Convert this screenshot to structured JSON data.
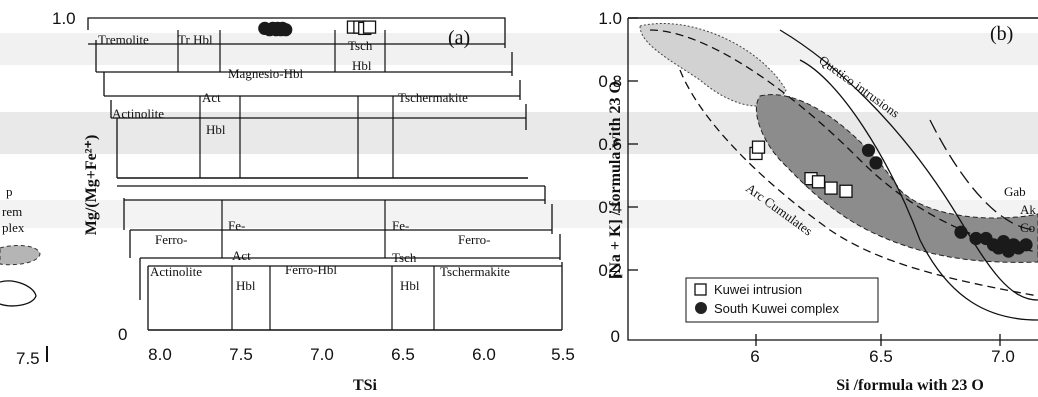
{
  "chart_data": [
    {
      "panel": "(a)",
      "type": "scatter",
      "xlabel": "TSi",
      "ylabel": "Mg/(Mg+Fe²⁺)",
      "xlim": [
        8.0,
        5.5
      ],
      "ylim": [
        0,
        1.0
      ],
      "x_ticks": [
        "8.0",
        "7.5",
        "7.0",
        "6.5",
        "6.0",
        "5.5"
      ],
      "y_ticks": [
        "1.0",
        "0"
      ],
      "left_edge_text": {
        "tick": "7.5",
        "fragments": [
          "p",
          "rem",
          "plex"
        ]
      },
      "field_labels": {
        "tremolite": "Tremolite",
        "tr_hbl": "Tr Hbl",
        "magnesio_hbl": "Magnesio-Hbl",
        "tsch_hbl": "Tsch",
        "tsch_hbl2": "Hbl",
        "actinolite": "Actinolite",
        "act_hbl": "Act",
        "act_hbl2": "Hbl",
        "tschermakite": "Tschermakite",
        "ferro_act": "Ferro-",
        "ferro_act2": "Actinolite",
        "fe_act_hbl": "Fe-",
        "fe_act_hbl2": "Act",
        "fe_act_hbl3": "Hbl",
        "ferro_hbl": "Ferro-Hbl",
        "fe_tsch": "Fe-",
        "fe_tsch2": "Tsch",
        "fe_tsch3": "Hbl",
        "ferro_tsch": "Ferro-",
        "ferro_tsch2": "Tschermakite"
      },
      "series": [
        {
          "marker": "filled circle",
          "points": [
            [
              7.35,
              0.92
            ],
            [
              7.32,
              0.91
            ],
            [
              7.3,
              0.92
            ],
            [
              7.28,
              0.91
            ],
            [
              7.27,
              0.92
            ],
            [
              7.25,
              0.91
            ],
            [
              7.24,
              0.92
            ],
            [
              7.22,
              0.91
            ]
          ]
        },
        {
          "marker": "open square",
          "points": [
            [
              6.8,
              0.93
            ],
            [
              6.76,
              0.93
            ],
            [
              6.73,
              0.92
            ],
            [
              6.7,
              0.93
            ]
          ]
        }
      ]
    },
    {
      "panel": "(b)",
      "type": "scatter",
      "xlabel": "Si /formula with 23 O",
      "ylabel": "[Na + K] / formula with 23 O",
      "xlim": [
        5.65,
        7.25
      ],
      "ylim": [
        0,
        1.0
      ],
      "x_ticks": [
        "6",
        "6.5",
        "7.0"
      ],
      "y_ticks": [
        "1.0",
        "0.8",
        "0.6",
        "0.4",
        "0.2",
        "0"
      ],
      "annotations": {
        "quetico": "Quetico intrusions",
        "arc": "Arc Cumulates",
        "gab1": "Gab",
        "gab2": "Ak",
        "gab3": "Co"
      },
      "legend": {
        "position": "bottom-left",
        "entries": [
          "Kuwei intrusion",
          "South Kuwei complex"
        ]
      },
      "series": [
        {
          "name": "Kuwei intrusion",
          "marker": "open square",
          "points": [
            [
              6.0,
              0.57
            ],
            [
              6.01,
              0.59
            ],
            [
              6.22,
              0.49
            ],
            [
              6.25,
              0.48
            ],
            [
              6.3,
              0.46
            ],
            [
              6.36,
              0.45
            ]
          ]
        },
        {
          "name": "South Kuwei complex",
          "marker": "filled circle",
          "points": [
            [
              6.45,
              0.58
            ],
            [
              6.48,
              0.54
            ],
            [
              6.82,
              0.32
            ],
            [
              6.88,
              0.3
            ],
            [
              6.92,
              0.3
            ],
            [
              6.95,
              0.28
            ],
            [
              6.97,
              0.27
            ],
            [
              6.99,
              0.29
            ],
            [
              7.01,
              0.26
            ],
            [
              7.03,
              0.28
            ],
            [
              7.05,
              0.27
            ],
            [
              7.08,
              0.28
            ]
          ]
        }
      ]
    }
  ]
}
